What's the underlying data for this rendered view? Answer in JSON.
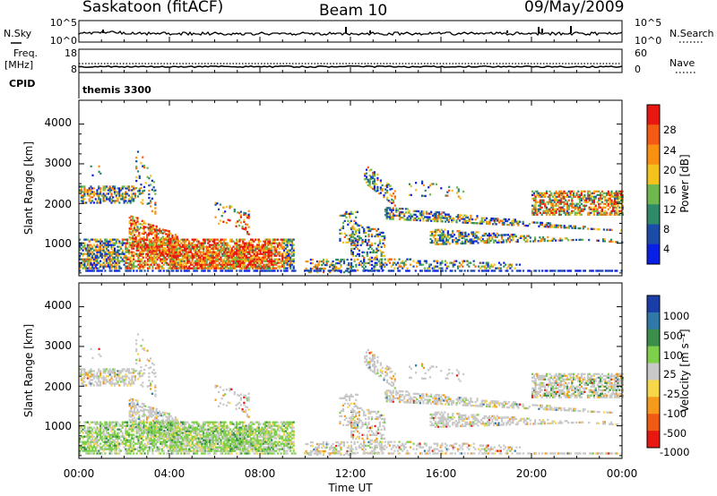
{
  "header": {
    "station": "Saskatoon (fitACF)",
    "beam": "Beam 10",
    "date": "09/May/2009"
  },
  "noise_panel": {
    "left_label": "N.Sky",
    "right_label": "N.Search",
    "left_ticks": [
      "10^5",
      "10^0"
    ],
    "right_ticks": [
      "10^5",
      "10^0"
    ]
  },
  "freq_panel": {
    "left_label_1": "Freq.",
    "left_label_2": "[MHz]",
    "right_label": "Nave",
    "left_ticks": [
      "18",
      "8"
    ],
    "right_ticks": [
      "60",
      "0"
    ]
  },
  "cpid_panel": {
    "label": "CPID",
    "value": "themis 3300"
  },
  "power_panel": {
    "ylabel": "Slant Range [km]",
    "yticks": [
      "4000",
      "3000",
      "2000",
      "1000"
    ],
    "cbar_label": "Power [dB]",
    "cbar_ticks": [
      "28",
      "24",
      "20",
      "16",
      "12",
      "8",
      "4"
    ],
    "cbar_colors": [
      "#e8170f",
      "#f45a13",
      "#f9900f",
      "#f5c21c",
      "#6fb84d",
      "#2f8a6a",
      "#1a4ca8",
      "#0a1fe6"
    ]
  },
  "velocity_panel": {
    "ylabel": "Slant Range [km]",
    "yticks": [
      "4000",
      "3000",
      "2000",
      "1000"
    ],
    "cbar_label": "Velocity [m s⁻¹]",
    "cbar_ticks": [
      "1000",
      "500",
      "100",
      "25",
      "-25",
      "-100",
      "-500",
      "-1000"
    ],
    "cbar_colors": [
      "#1a3ea8",
      "#2f78a8",
      "#3b8f4a",
      "#7ed04a",
      "#c8c8c8",
      "#f8d64a",
      "#f59a1a",
      "#f05a12",
      "#e8170f"
    ]
  },
  "xaxis": {
    "label": "Time UT",
    "ticks": [
      "00:00",
      "04:00",
      "08:00",
      "12:00",
      "16:00",
      "20:00",
      "00:00"
    ]
  },
  "chart_data": [
    {
      "type": "heatmap",
      "name": "Power",
      "xlabel": "Time UT",
      "ylabel": "Slant Range [km]",
      "xlim": [
        0,
        24
      ],
      "ylim": [
        180,
        4600
      ],
      "colorbar": {
        "label": "Power [dB]",
        "ticks": [
          28,
          24,
          20,
          16,
          12,
          8,
          4
        ]
      }
    },
    {
      "type": "heatmap",
      "name": "Velocity",
      "xlabel": "Time UT",
      "ylabel": "Slant Range [km]",
      "xlim": [
        0,
        24
      ],
      "ylim": [
        180,
        4600
      ],
      "colorbar": {
        "label": "Velocity [m s⁻¹]",
        "ticks": [
          1000,
          500,
          100,
          25,
          -25,
          -100,
          -500,
          -1000
        ]
      }
    }
  ]
}
